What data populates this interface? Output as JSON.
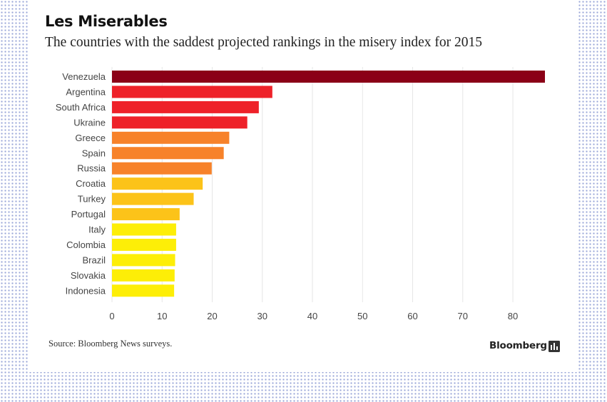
{
  "title": "Les Miserables",
  "subtitle": "The countries with the saddest projected rankings in the misery index for 2015",
  "source": "Source: Bloomberg News surveys.",
  "brand": "Bloomberg",
  "brand_icon": "bar-chart-icon",
  "colors": {
    "background": "#ffffff",
    "grid": "#e6e6e6",
    "dots": "#9aa6d8"
  },
  "chart_data": {
    "type": "bar",
    "orientation": "horizontal",
    "categories": [
      "Venezuela",
      "Argentina",
      "South Africa",
      "Ukraine",
      "Greece",
      "Spain",
      "Russia",
      "Croatia",
      "Turkey",
      "Portugal",
      "Italy",
      "Colombia",
      "Brazil",
      "Slovakia",
      "Indonesia"
    ],
    "values": [
      86.4,
      32.0,
      29.3,
      27.0,
      23.4,
      22.3,
      19.9,
      18.1,
      16.3,
      13.5,
      12.8,
      12.8,
      12.6,
      12.5,
      12.4
    ],
    "colors": [
      "#8b0017",
      "#ee2129",
      "#ee2129",
      "#ee2129",
      "#f7822a",
      "#f7822a",
      "#f7822a",
      "#fcc319",
      "#fcc319",
      "#fcc319",
      "#fdee07",
      "#fdee07",
      "#fdee07",
      "#fdee07",
      "#fdee07"
    ],
    "xlim": [
      0,
      86.4
    ],
    "xticks": [
      0,
      10,
      20,
      30,
      40,
      50,
      60,
      70,
      80
    ],
    "xlabel": "",
    "ylabel": "",
    "grid": true,
    "legend": "none"
  }
}
